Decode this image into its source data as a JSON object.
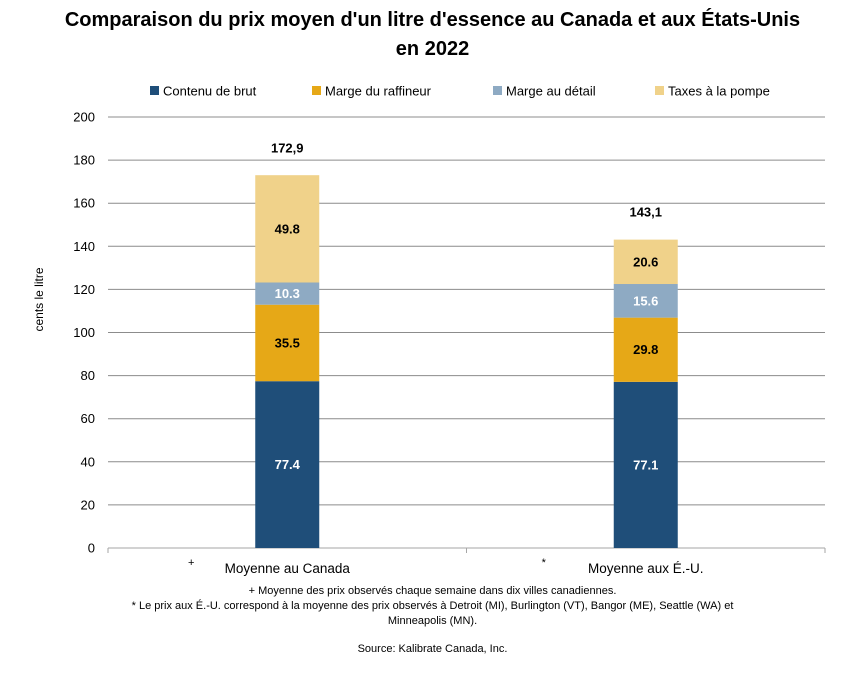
{
  "chart_data": {
    "type": "bar",
    "stacked": true,
    "title": "Comparaison du prix moyen d'un litre d'essence au Canada et aux États-Unis en 2022",
    "ylabel": "cents le litre",
    "xlabel": "",
    "ylim": [
      0,
      200
    ],
    "yticks": [
      0,
      20,
      40,
      60,
      80,
      100,
      120,
      140,
      160,
      180,
      200
    ],
    "grid": true,
    "legend_position": "top",
    "categories": [
      "Moyenne au Canada",
      "Moyenne aux É.-U."
    ],
    "category_markers": [
      "+",
      "*"
    ],
    "series": [
      {
        "name": "Contenu de brut",
        "color": "#1f4e79",
        "label_color": "#ffffff",
        "values": [
          77.4,
          77.1
        ]
      },
      {
        "name": "Marge du raffineur",
        "color": "#e6a817",
        "label_color": "#000000",
        "values": [
          35.5,
          29.8
        ]
      },
      {
        "name": "Marge au détail",
        "color": "#8eaac3",
        "label_color": "#ffffff",
        "values": [
          10.3,
          15.6
        ]
      },
      {
        "name": "Taxes à la pompe",
        "color": "#f0d28a",
        "label_color": "#000000",
        "values": [
          49.8,
          20.6
        ]
      }
    ],
    "value_labels": [
      [
        "77.4",
        "77.1"
      ],
      [
        "35.5",
        "29.8"
      ],
      [
        "10.3",
        "15.6"
      ],
      [
        "49.8",
        "20.6"
      ]
    ],
    "totals": [
      172.9,
      143.1
    ],
    "total_labels": [
      "172,9",
      "143,1"
    ]
  },
  "notes": [
    "+ Moyenne des prix observés chaque semaine dans dix villes canadiennes.",
    "* Le prix aux É.-U. correspond à la moyenne des prix observés à  Detroit (MI), Burlington (VT), Bangor (ME), Seattle (WA) et",
    "Minneapolis (MN)."
  ],
  "source": "Source: Kalibrate Canada, Inc."
}
